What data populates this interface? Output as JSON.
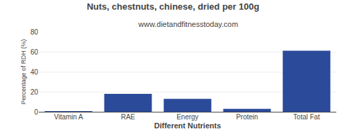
{
  "chart_data": {
    "type": "bar",
    "title": "Nuts, chestnuts, chinese, dried per 100g",
    "subtitle": "www.dietandfitnesstoday.com",
    "xlabel": "Different Nutrients",
    "ylabel": "Percentage of RDH (%)",
    "categories": [
      "Vitamin A",
      "RAE",
      "Energy",
      "Protein",
      "Total Fat"
    ],
    "values": [
      0.5,
      18,
      13,
      3,
      61
    ],
    "color": "#2b4a9a",
    "ylim": [
      0,
      80
    ],
    "yticks": [
      0,
      20,
      40,
      60,
      80
    ],
    "grid": true
  }
}
